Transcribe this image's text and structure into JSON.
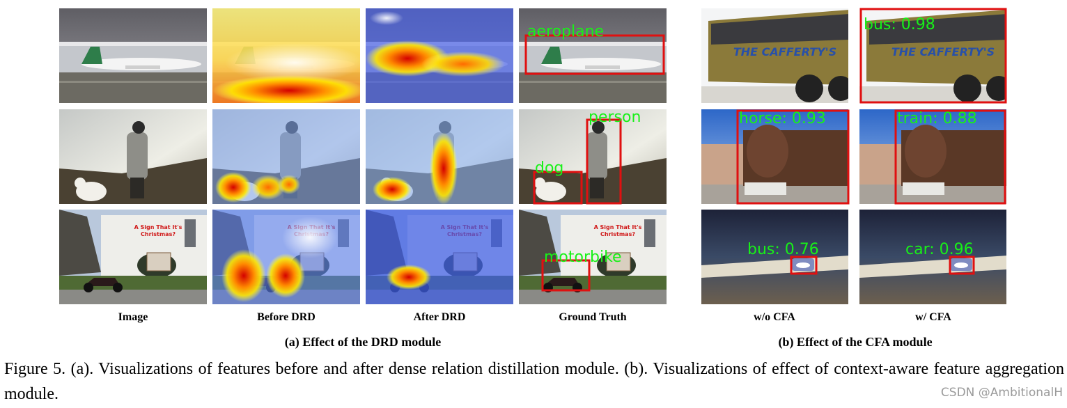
{
  "figure": {
    "panel_a": {
      "column_labels": [
        "Image",
        "Before DRD",
        "After DRD",
        "Ground Truth"
      ],
      "caption": "(a) Effect of the DRD module",
      "ground_truth_labels": [
        "aeroplane",
        "person",
        "dog",
        "motorbike"
      ],
      "sign_text": [
        "A Sign That It's",
        "Christmas?"
      ]
    },
    "panel_b": {
      "column_labels": [
        "w/o CFA",
        "w/ CFA"
      ],
      "caption": "(b) Effect of the CFA module",
      "bus_text": "THE CAFFERTY'S",
      "detections": [
        "bus: 0.98",
        "horse: 0.93",
        "train: 0.88",
        "bus: 0.76",
        "car: 0.96"
      ]
    }
  },
  "caption": "Figure 5. (a). Visualizations of features before and after dense relation distillation module. (b). Visualizations of effect of context-aware feature aggregation module.",
  "watermark": "CSDN @AmbitionalH"
}
